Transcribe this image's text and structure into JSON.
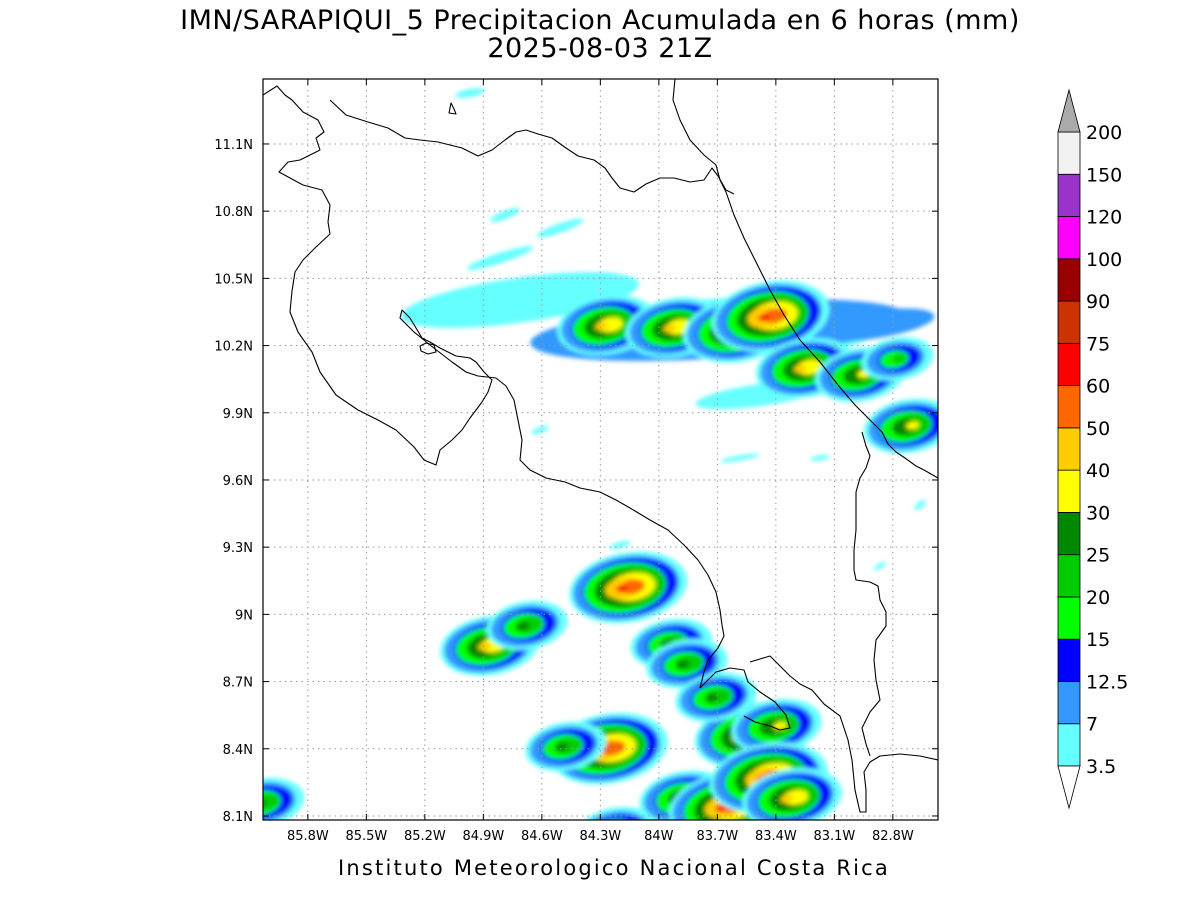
{
  "header": {
    "title_line1": "IMN/SARAPIQUI_5 Precipitacion Acumulada en 6 horas (mm)",
    "title_line2": "2025-08-03 21Z"
  },
  "footer": {
    "credit": "Instituto Meteorologico Nacional Costa Rica"
  },
  "axes": {
    "lon_labels": [
      "85.8W",
      "85.5W",
      "85.2W",
      "84.9W",
      "84.6W",
      "84.3W",
      "84W",
      "83.7W",
      "83.4W",
      "83.1W",
      "82.8W"
    ],
    "lat_labels": [
      "11.1N",
      "10.8N",
      "10.5N",
      "10.2N",
      "9.9N",
      "9.6N",
      "9.3N",
      "9N",
      "8.7N",
      "8.4N",
      "8.1N"
    ],
    "grid": "dotted"
  },
  "colorbar": {
    "levels": [
      "3.5",
      "7",
      "12.5",
      "15",
      "20",
      "25",
      "30",
      "40",
      "50",
      "60",
      "75",
      "90",
      "100",
      "120",
      "150",
      "200"
    ],
    "colors": [
      "#ffffff",
      "#66ffff",
      "#3399ff",
      "#0000ff",
      "#00ff00",
      "#00cc00",
      "#008800",
      "#ffff00",
      "#ffcc00",
      "#ff6600",
      "#ff0000",
      "#cc3300",
      "#990000",
      "#ff00ff",
      "#9933cc",
      "#f2f2f2",
      "#aaaaaa"
    ]
  },
  "rain_cells": [
    {
      "lon": -84.27,
      "lat": 10.29,
      "max_class": 8
    },
    {
      "lon": -83.92,
      "lat": 10.28,
      "max_class": 8
    },
    {
      "lon": -83.6,
      "lat": 10.27,
      "max_class": 9
    },
    {
      "lon": -83.43,
      "lat": 10.33,
      "max_class": 10
    },
    {
      "lon": -83.25,
      "lat": 10.1,
      "max_class": 8
    },
    {
      "lon": -82.97,
      "lat": 10.07,
      "max_class": 7
    },
    {
      "lon": -82.78,
      "lat": 10.14,
      "max_class": 5
    },
    {
      "lon": -82.72,
      "lat": 9.84,
      "max_class": 7
    },
    {
      "lon": -84.16,
      "lat": 9.12,
      "max_class": 10
    },
    {
      "lon": -83.94,
      "lat": 8.87,
      "max_class": 6
    },
    {
      "lon": -83.86,
      "lat": 8.78,
      "max_class": 6
    },
    {
      "lon": -84.87,
      "lat": 8.86,
      "max_class": 8
    },
    {
      "lon": -84.68,
      "lat": 8.95,
      "max_class": 6
    },
    {
      "lon": -84.26,
      "lat": 8.4,
      "max_class": 10
    },
    {
      "lon": -84.48,
      "lat": 8.41,
      "max_class": 6
    },
    {
      "lon": -83.54,
      "lat": 8.46,
      "max_class": 9
    },
    {
      "lon": -83.4,
      "lat": 8.5,
      "max_class": 7
    },
    {
      "lon": -83.71,
      "lat": 8.63,
      "max_class": 6
    },
    {
      "lon": -83.87,
      "lat": 8.18,
      "max_class": 7
    },
    {
      "lon": -83.65,
      "lat": 8.14,
      "max_class": 10
    },
    {
      "lon": -83.44,
      "lat": 8.27,
      "max_class": 10
    },
    {
      "lon": -83.32,
      "lat": 8.18,
      "max_class": 8
    },
    {
      "lon": -86.03,
      "lat": 8.16,
      "max_class": 6
    },
    {
      "lon": -84.22,
      "lat": 8.03,
      "max_class": 6
    }
  ]
}
